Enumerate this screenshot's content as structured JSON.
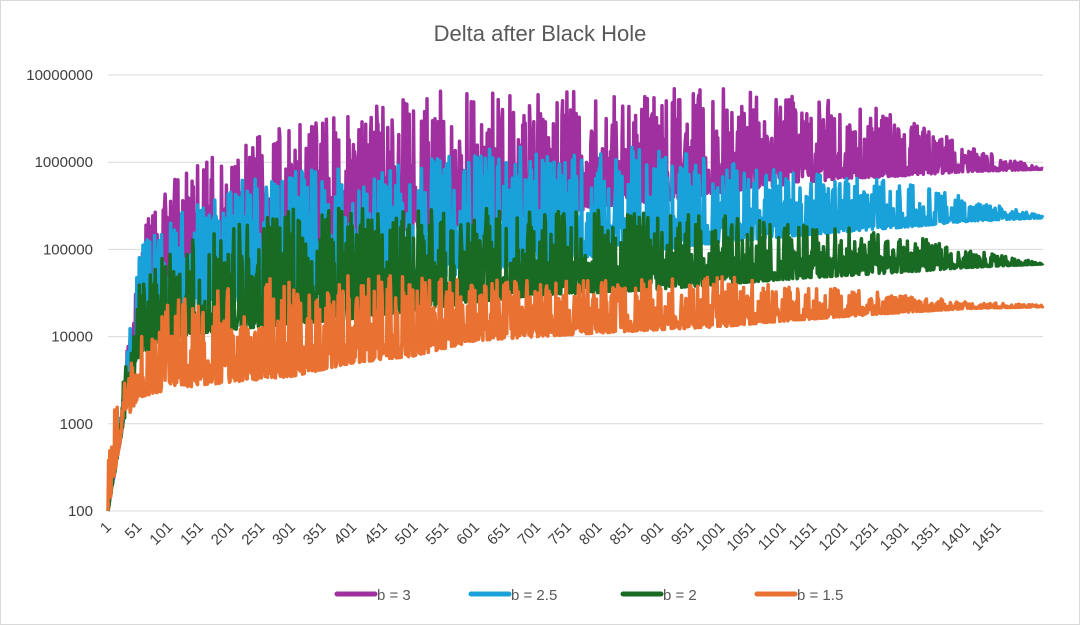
{
  "chart_data": {
    "type": "line",
    "title": "Delta after Black Hole",
    "xlabel": "",
    "ylabel": "",
    "y_scale": "log",
    "ylim": [
      100,
      10000000
    ],
    "y_ticks": [
      "100",
      "1000",
      "10000",
      "100000",
      "1000000",
      "10000000"
    ],
    "x_range": [
      1,
      1525
    ],
    "x_ticks": [
      "1",
      "51",
      "101",
      "151",
      "201",
      "251",
      "301",
      "351",
      "401",
      "451",
      "501",
      "551",
      "601",
      "651",
      "701",
      "751",
      "801",
      "851",
      "901",
      "951",
      "1001",
      "1051",
      "1101",
      "1151",
      "1201",
      "1251",
      "1301",
      "1351",
      "1401",
      "1451"
    ],
    "grid": "horizontal",
    "legend": "bottom",
    "envelope_x": [
      1,
      26,
      51,
      101,
      201,
      301,
      401,
      501,
      601,
      701,
      801,
      901,
      1001,
      1101,
      1201,
      1301,
      1401,
      1525
    ],
    "series": [
      {
        "name": "b = 3",
        "color": "#A0309F",
        "lower": [
          100,
          1000,
          20000,
          50000,
          80000,
          100000,
          130000,
          160000,
          200000,
          250000,
          300000,
          350000,
          450000,
          550000,
          650000,
          700000,
          780000,
          830000
        ],
        "upper": [
          100,
          3000,
          150000,
          600000,
          1500000,
          3000000,
          4500000,
          6000000,
          8000000,
          7000000,
          7000000,
          7000000,
          7000000,
          6000000,
          5000000,
          3500000,
          1500000,
          850000
        ]
      },
      {
        "name": "b = 2.5",
        "color": "#19A1D9",
        "lower": [
          100,
          1000,
          10000,
          20000,
          25000,
          30000,
          35000,
          45000,
          55000,
          70000,
          85000,
          100000,
          120000,
          140000,
          160000,
          180000,
          210000,
          230000
        ],
        "upper": [
          100,
          3000,
          100000,
          250000,
          600000,
          800000,
          900000,
          1000000,
          1500000,
          1500000,
          1500000,
          1500000,
          1000000,
          800000,
          700000,
          600000,
          400000,
          240000
        ]
      },
      {
        "name": "b = 2",
        "color": "#196B24",
        "lower": [
          100,
          1000,
          6000,
          10000,
          12000,
          14000,
          16000,
          20000,
          25000,
          30000,
          32000,
          35000,
          40000,
          45000,
          50000,
          55000,
          62000,
          68000
        ],
        "upper": [
          100,
          3000,
          40000,
          100000,
          200000,
          300000,
          300000,
          300000,
          300000,
          300000,
          300000,
          250000,
          250000,
          200000,
          180000,
          150000,
          100000,
          70000
        ]
      },
      {
        "name": "b = 1.5",
        "color": "#E97132",
        "lower": [
          100,
          1000,
          2000,
          2500,
          3000,
          3500,
          5000,
          6000,
          9000,
          10000,
          11000,
          12000,
          13000,
          15000,
          17000,
          19000,
          21000,
          22000
        ],
        "upper": [
          900,
          3000,
          10000,
          25000,
          40000,
          50000,
          50000,
          50000,
          45000,
          45000,
          45000,
          45000,
          50000,
          40000,
          35000,
          30000,
          25000,
          23000
        ]
      }
    ]
  }
}
